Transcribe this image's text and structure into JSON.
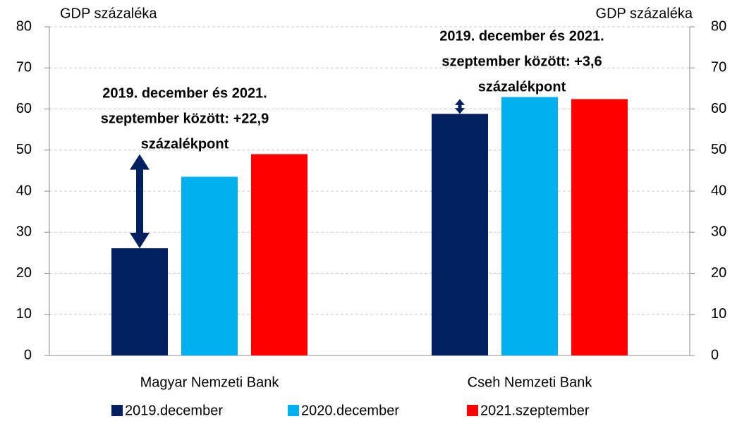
{
  "chart_data": {
    "type": "bar",
    "y_label": "GDP százaléka",
    "y2_label": "GDP százaléka",
    "categories": [
      "Magyar Nemzeti Bank",
      "Cseh Nemzeti Bank"
    ],
    "series": [
      {
        "name": "2019.december",
        "color": "#002060",
        "values": [
          26.1,
          58.8
        ]
      },
      {
        "name": "2020.december",
        "color": "#00b0f0",
        "values": [
          43.5,
          62.9
        ]
      },
      {
        "name": "2021.szeptember",
        "color": "#ff0000",
        "values": [
          49.0,
          62.4
        ]
      }
    ],
    "ylim": [
      0,
      80
    ],
    "yticks": [
      0,
      10,
      20,
      30,
      40,
      50,
      60,
      70,
      80
    ],
    "y2lim": [
      0,
      80
    ],
    "y2ticks": [
      0,
      10,
      20,
      30,
      40,
      50,
      60,
      70,
      80
    ],
    "grid": true,
    "legend": "bottom",
    "annotations": [
      {
        "lines": [
          "2019. december és 2021.",
          "szeptember között: +22,9",
          "százalékpont"
        ]
      },
      {
        "lines": [
          "2019. december és 2021.",
          "szeptember között: +3,6",
          "százalékpont"
        ]
      }
    ]
  }
}
